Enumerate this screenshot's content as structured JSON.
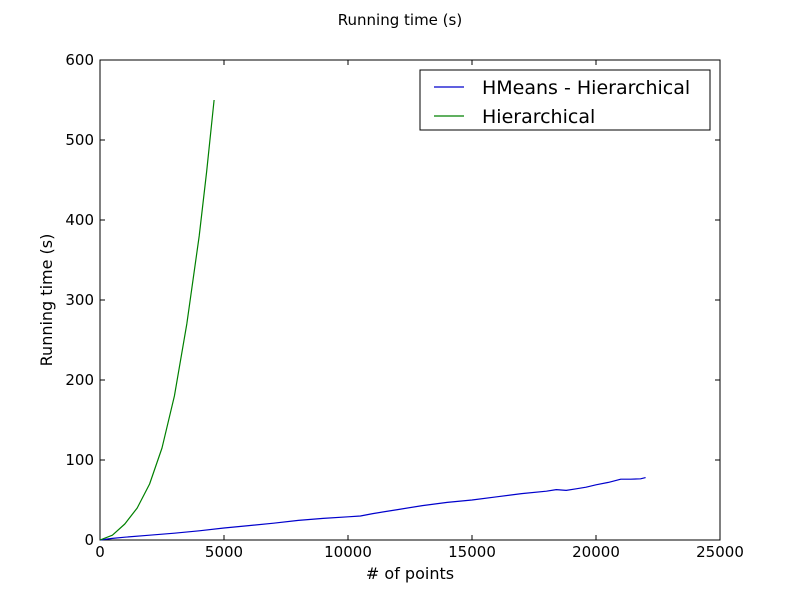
{
  "chart_data": {
    "type": "line",
    "title": "Running time (s)",
    "xlabel": "# of points",
    "ylabel": "Running time (s)",
    "xlim": [
      0,
      25000
    ],
    "ylim": [
      0,
      600
    ],
    "xticks": [
      0,
      5000,
      10000,
      15000,
      20000,
      25000
    ],
    "yticks": [
      0,
      100,
      200,
      300,
      400,
      500,
      600
    ],
    "grid": false,
    "legend_position": "top-right",
    "series": [
      {
        "name": "HMeans - Hierarchical",
        "color": "#0000cc",
        "x": [
          0,
          500,
          1000,
          2000,
          3000,
          4000,
          5000,
          6000,
          7000,
          8000,
          9000,
          10000,
          10500,
          11000,
          12000,
          13000,
          14000,
          15000,
          16000,
          17000,
          18000,
          18400,
          18800,
          19200,
          19600,
          20000,
          20500,
          21000,
          21400,
          21800,
          22000
        ],
        "y": [
          0,
          2,
          3.5,
          6,
          8.5,
          11.5,
          15,
          18,
          21,
          24.5,
          27,
          29,
          30,
          33,
          38,
          43,
          47,
          50,
          54,
          58,
          61,
          63,
          62,
          64,
          66,
          69,
          72,
          76,
          76,
          76.5,
          78
        ]
      },
      {
        "name": "Hierarchical",
        "color": "#008000",
        "x": [
          0,
          500,
          1000,
          1500,
          2000,
          2500,
          3000,
          3500,
          4000,
          4300,
          4600
        ],
        "y": [
          0,
          6,
          20,
          40,
          70,
          115,
          180,
          270,
          380,
          460,
          550
        ]
      }
    ]
  }
}
